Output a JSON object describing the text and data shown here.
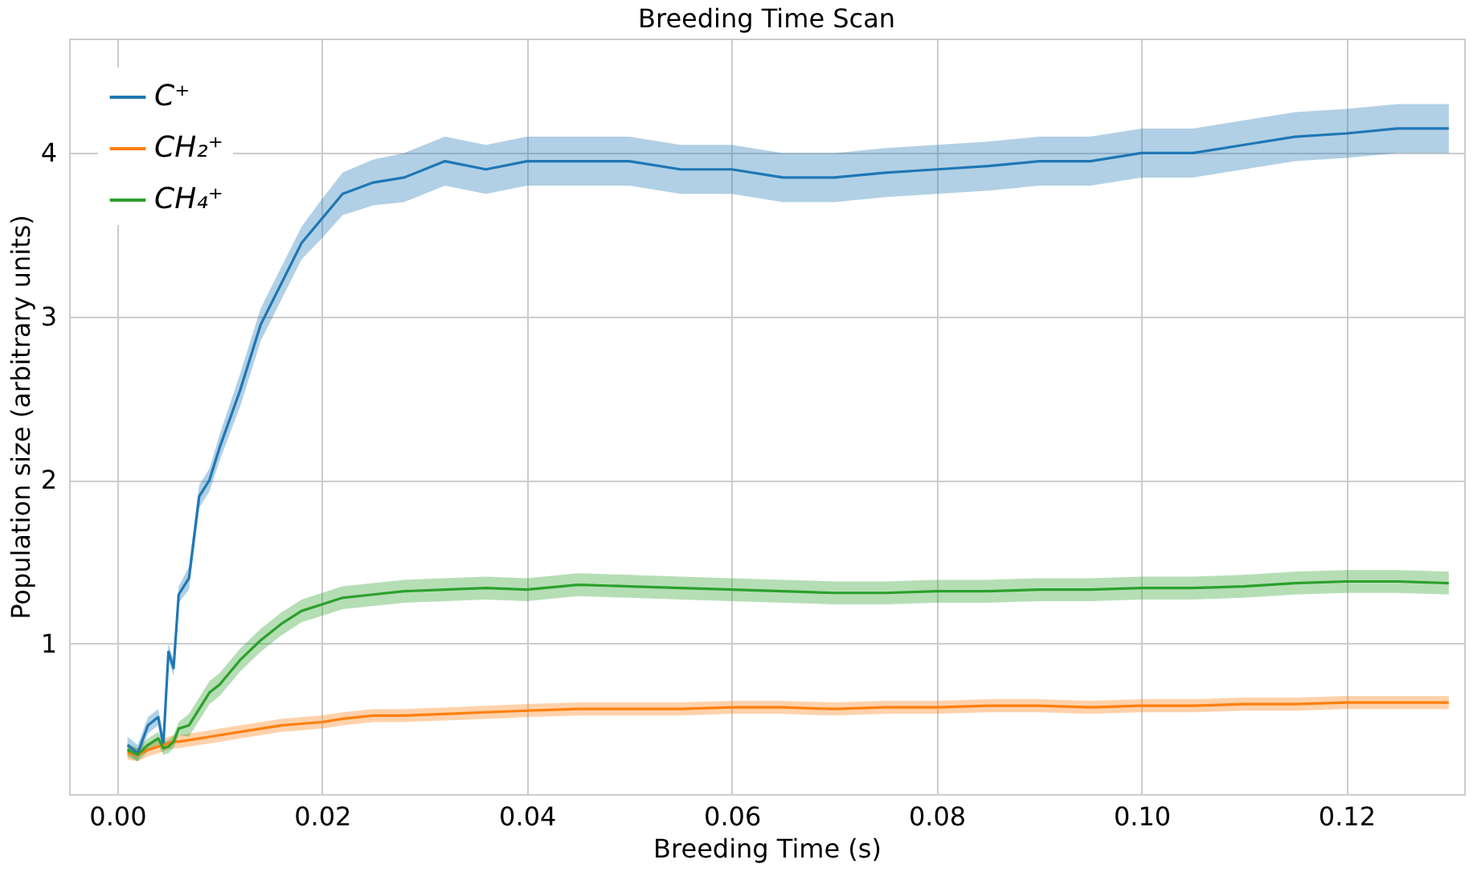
{
  "chart_data": {
    "type": "line",
    "title": "Breeding Time Scan",
    "xlabel": "Breeding Time (s)",
    "ylabel": "Population size (arbitrary units)",
    "x": [
      0.001,
      0.002,
      0.003,
      0.004,
      0.0045,
      0.005,
      0.0055,
      0.006,
      0.007,
      0.008,
      0.009,
      0.01,
      0.012,
      0.014,
      0.016,
      0.018,
      0.02,
      0.022,
      0.025,
      0.028,
      0.032,
      0.036,
      0.04,
      0.045,
      0.05,
      0.055,
      0.06,
      0.065,
      0.07,
      0.075,
      0.08,
      0.085,
      0.09,
      0.095,
      0.1,
      0.105,
      0.11,
      0.115,
      0.12,
      0.125,
      0.13
    ],
    "series": [
      {
        "name": "C⁺",
        "color": "#1f77b4",
        "values": [
          0.38,
          0.33,
          0.5,
          0.55,
          0.38,
          0.95,
          0.85,
          1.3,
          1.4,
          1.9,
          2.0,
          2.2,
          2.55,
          2.95,
          3.2,
          3.45,
          3.6,
          3.75,
          3.82,
          3.85,
          3.95,
          3.9,
          3.95,
          3.95,
          3.95,
          3.9,
          3.9,
          3.85,
          3.85,
          3.88,
          3.9,
          3.92,
          3.95,
          3.95,
          4.0,
          4.0,
          4.05,
          4.1,
          4.12,
          4.15,
          4.15
        ],
        "lower": [
          0.33,
          0.28,
          0.45,
          0.5,
          0.33,
          0.9,
          0.8,
          1.25,
          1.33,
          1.83,
          1.93,
          2.12,
          2.45,
          2.85,
          3.1,
          3.35,
          3.48,
          3.62,
          3.68,
          3.7,
          3.8,
          3.75,
          3.8,
          3.8,
          3.8,
          3.75,
          3.75,
          3.7,
          3.7,
          3.73,
          3.75,
          3.77,
          3.8,
          3.8,
          3.85,
          3.85,
          3.9,
          3.95,
          3.97,
          4.0,
          4.0
        ],
        "upper": [
          0.43,
          0.38,
          0.55,
          0.6,
          0.43,
          1.0,
          0.9,
          1.35,
          1.47,
          1.97,
          2.07,
          2.28,
          2.65,
          3.05,
          3.3,
          3.55,
          3.72,
          3.88,
          3.96,
          4.0,
          4.1,
          4.05,
          4.1,
          4.1,
          4.1,
          4.05,
          4.05,
          4.0,
          4.0,
          4.03,
          4.05,
          4.07,
          4.1,
          4.1,
          4.15,
          4.15,
          4.2,
          4.25,
          4.27,
          4.3,
          4.3
        ]
      },
      {
        "name": "CH₂⁺",
        "color": "#ff7f0e",
        "values": [
          0.33,
          0.32,
          0.35,
          0.37,
          0.38,
          0.39,
          0.4,
          0.4,
          0.41,
          0.42,
          0.43,
          0.44,
          0.46,
          0.48,
          0.5,
          0.51,
          0.52,
          0.54,
          0.56,
          0.56,
          0.57,
          0.58,
          0.59,
          0.6,
          0.6,
          0.6,
          0.61,
          0.61,
          0.6,
          0.61,
          0.61,
          0.62,
          0.62,
          0.61,
          0.62,
          0.62,
          0.63,
          0.63,
          0.64,
          0.64,
          0.64
        ],
        "lower": [
          0.29,
          0.28,
          0.31,
          0.33,
          0.34,
          0.35,
          0.36,
          0.36,
          0.37,
          0.38,
          0.39,
          0.4,
          0.42,
          0.44,
          0.46,
          0.47,
          0.48,
          0.5,
          0.52,
          0.52,
          0.53,
          0.54,
          0.55,
          0.56,
          0.56,
          0.56,
          0.57,
          0.57,
          0.56,
          0.57,
          0.57,
          0.58,
          0.58,
          0.57,
          0.58,
          0.58,
          0.59,
          0.59,
          0.6,
          0.6,
          0.6
        ],
        "upper": [
          0.37,
          0.36,
          0.39,
          0.41,
          0.42,
          0.43,
          0.44,
          0.44,
          0.45,
          0.46,
          0.47,
          0.48,
          0.5,
          0.52,
          0.54,
          0.55,
          0.56,
          0.58,
          0.6,
          0.6,
          0.61,
          0.62,
          0.63,
          0.64,
          0.64,
          0.64,
          0.65,
          0.65,
          0.64,
          0.65,
          0.65,
          0.66,
          0.66,
          0.65,
          0.66,
          0.66,
          0.67,
          0.67,
          0.68,
          0.68,
          0.68
        ]
      },
      {
        "name": "CH₄⁺",
        "color": "#2ca02c",
        "values": [
          0.35,
          0.32,
          0.38,
          0.42,
          0.36,
          0.37,
          0.4,
          0.48,
          0.5,
          0.6,
          0.7,
          0.75,
          0.9,
          1.02,
          1.12,
          1.2,
          1.24,
          1.28,
          1.3,
          1.32,
          1.33,
          1.34,
          1.33,
          1.36,
          1.35,
          1.34,
          1.33,
          1.32,
          1.31,
          1.31,
          1.32,
          1.32,
          1.33,
          1.33,
          1.34,
          1.34,
          1.35,
          1.37,
          1.38,
          1.38,
          1.37
        ],
        "lower": [
          0.31,
          0.28,
          0.34,
          0.38,
          0.32,
          0.33,
          0.36,
          0.44,
          0.43,
          0.53,
          0.63,
          0.68,
          0.83,
          0.95,
          1.05,
          1.13,
          1.17,
          1.21,
          1.23,
          1.25,
          1.26,
          1.27,
          1.26,
          1.29,
          1.28,
          1.27,
          1.26,
          1.25,
          1.24,
          1.24,
          1.25,
          1.25,
          1.26,
          1.26,
          1.27,
          1.27,
          1.28,
          1.3,
          1.31,
          1.31,
          1.3
        ],
        "upper": [
          0.39,
          0.36,
          0.42,
          0.46,
          0.4,
          0.41,
          0.44,
          0.52,
          0.57,
          0.67,
          0.77,
          0.82,
          0.97,
          1.09,
          1.19,
          1.27,
          1.31,
          1.35,
          1.37,
          1.39,
          1.4,
          1.41,
          1.4,
          1.43,
          1.42,
          1.41,
          1.4,
          1.39,
          1.38,
          1.38,
          1.39,
          1.39,
          1.4,
          1.4,
          1.41,
          1.41,
          1.42,
          1.44,
          1.45,
          1.45,
          1.44
        ]
      }
    ],
    "xlim": [
      -0.0047,
      0.1315
    ],
    "ylim": [
      0.08,
      4.7
    ],
    "xticks": [
      {
        "value": 0,
        "label": "0.00"
      },
      {
        "value": 0.02,
        "label": "0.02"
      },
      {
        "value": 0.04,
        "label": "0.04"
      },
      {
        "value": 0.06,
        "label": "0.06"
      },
      {
        "value": 0.08,
        "label": "0.08"
      },
      {
        "value": 0.1,
        "label": "0.10"
      },
      {
        "value": 0.12,
        "label": "0.12"
      }
    ],
    "yticks": [
      1,
      2,
      3,
      4
    ],
    "grid": true,
    "legend": "top left",
    "line_style": "solid",
    "marker": "none"
  }
}
